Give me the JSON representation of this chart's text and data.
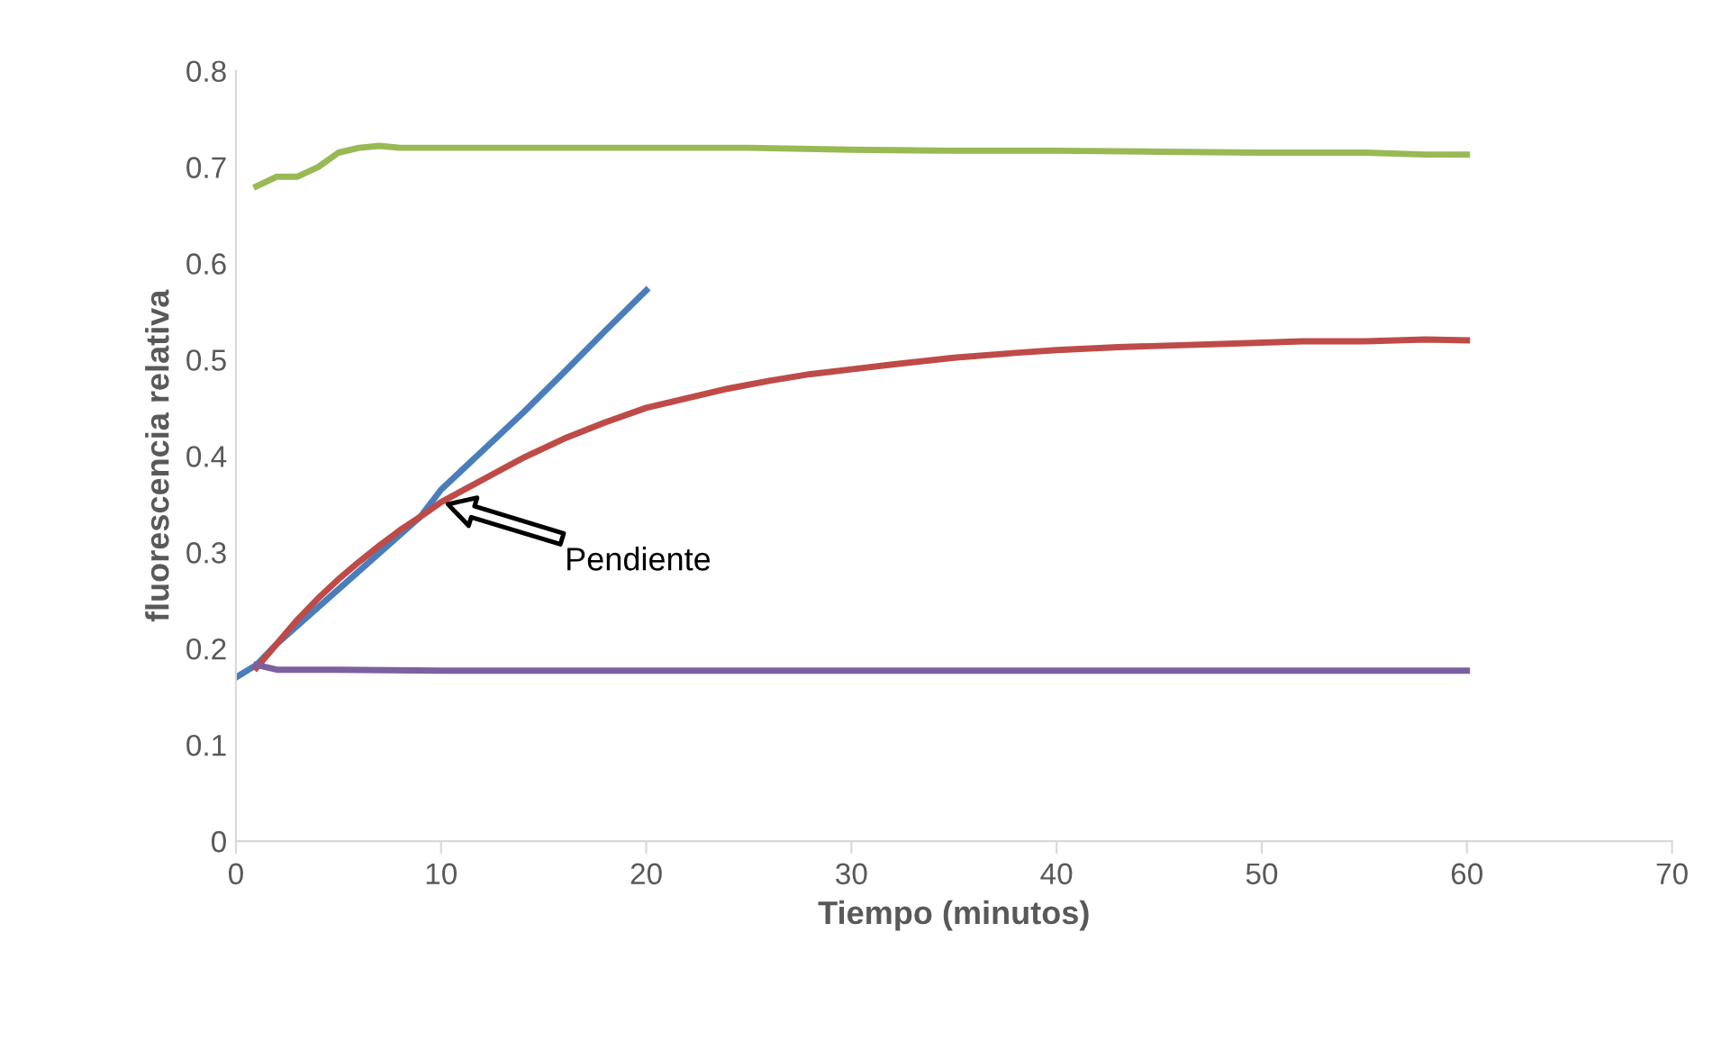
{
  "chart_data": {
    "type": "line",
    "xlabel": "Tiempo (minutos)",
    "ylabel": "fluorescencia relativa",
    "xlim": [
      0,
      70
    ],
    "ylim": [
      0,
      0.8
    ],
    "xticks": [
      0,
      10,
      20,
      30,
      40,
      50,
      60,
      70
    ],
    "yticks": [
      0,
      0.1,
      0.2,
      0.3,
      0.4,
      0.5,
      0.6,
      0.7,
      0.8
    ],
    "grid": false,
    "legend": false,
    "marker": "none",
    "line_style": "solid",
    "annotations": [
      "Pendiente"
    ],
    "series": [
      {
        "color": "#4a7ebb",
        "x": [
          0,
          1,
          2,
          9,
          10,
          12,
          14,
          16,
          18,
          20
        ],
        "values": [
          0.17,
          0.183,
          0.205,
          0.337,
          0.365,
          0.405,
          0.445,
          0.487,
          0.53,
          0.572
        ]
      },
      {
        "color": "#be4b48",
        "x": [
          1,
          2,
          3,
          4,
          5,
          6,
          7,
          8,
          9,
          10,
          12,
          14,
          16,
          18,
          20,
          22,
          24,
          26,
          28,
          30,
          32,
          35,
          38,
          40,
          43,
          46,
          49,
          52,
          55,
          58,
          60
        ],
        "values": [
          0.18,
          0.205,
          0.23,
          0.252,
          0.272,
          0.29,
          0.307,
          0.323,
          0.337,
          0.352,
          0.375,
          0.398,
          0.418,
          0.435,
          0.45,
          0.46,
          0.47,
          0.478,
          0.485,
          0.49,
          0.495,
          0.502,
          0.507,
          0.51,
          0.513,
          0.515,
          0.517,
          0.519,
          0.519,
          0.521,
          0.52
        ]
      },
      {
        "color": "#98b954",
        "x": [
          1,
          2,
          3,
          4,
          5,
          6,
          7,
          8,
          10,
          15,
          20,
          25,
          30,
          35,
          40,
          45,
          50,
          55,
          58,
          60
        ],
        "values": [
          0.68,
          0.69,
          0.69,
          0.7,
          0.715,
          0.72,
          0.722,
          0.72,
          0.72,
          0.72,
          0.72,
          0.72,
          0.718,
          0.717,
          0.717,
          0.716,
          0.715,
          0.715,
          0.713,
          0.713
        ]
      },
      {
        "color": "#7d60a0",
        "x": [
          1,
          2,
          5,
          10,
          20,
          30,
          40,
          50,
          60
        ],
        "values": [
          0.183,
          0.178,
          0.178,
          0.177,
          0.177,
          0.177,
          0.177,
          0.177,
          0.177
        ]
      }
    ]
  }
}
